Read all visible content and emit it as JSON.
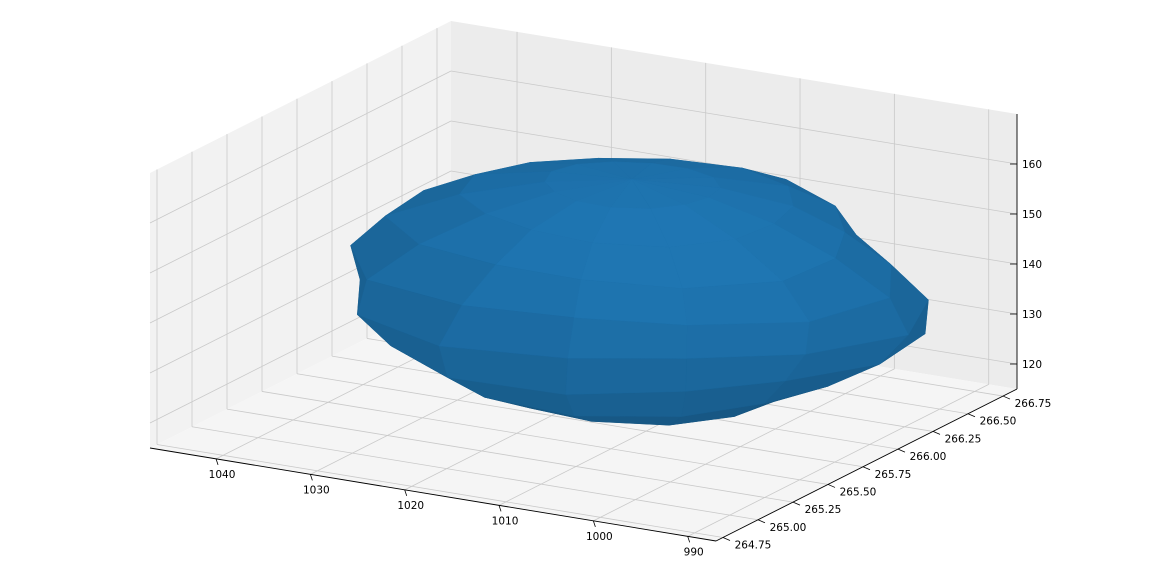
{
  "chart_data": {
    "type": "surface3d",
    "title": "",
    "xlabel": "",
    "ylabel": "",
    "zlabel": "",
    "grid": true,
    "x_ticks": [
      "990",
      "1000",
      "1010",
      "1020",
      "1030",
      "1040"
    ],
    "x_tick_values": [
      990,
      1000,
      1010,
      1020,
      1030,
      1040
    ],
    "y_ticks": [
      "264.75",
      "265.00",
      "265.25",
      "265.50",
      "265.75",
      "266.00",
      "266.25",
      "266.50",
      "266.75"
    ],
    "y_tick_values": [
      264.75,
      265.0,
      265.25,
      265.5,
      265.75,
      266.0,
      266.25,
      266.5,
      266.75
    ],
    "z_ticks": [
      "120",
      "130",
      "140",
      "150",
      "160"
    ],
    "z_tick_values": [
      120,
      130,
      140,
      150,
      160
    ],
    "xlim": [
      987,
      1047
    ],
    "ylim": [
      264.7,
      266.85
    ],
    "zlim": [
      115,
      170
    ],
    "surface": {
      "shape": "closed ellipsoid-like shell",
      "center": [
        1013,
        265.85,
        141
      ],
      "radii": [
        27,
        0.9,
        22
      ],
      "color": "#1f77b4"
    },
    "colors": {
      "surface": "#1f77b4",
      "pane_left": "#f2f2f2",
      "pane_back": "#ececec",
      "pane_floor": "#f5f5f5",
      "grid": "#c9c9c9",
      "axis": "#000000"
    }
  }
}
